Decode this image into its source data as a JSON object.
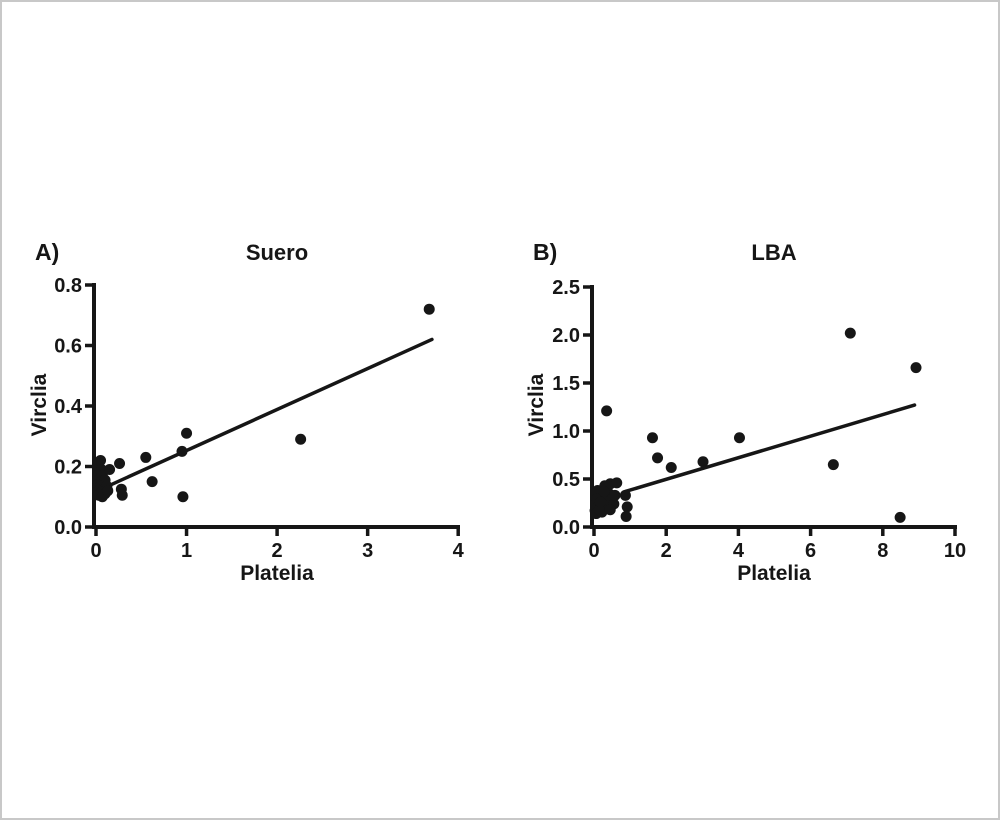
{
  "figure": {
    "background": "#ffffff",
    "border_color": "#c8c8c8",
    "ink_color": "#161616"
  },
  "chart_data": [
    {
      "type": "scatter",
      "panel_label": "A)",
      "title": "Suero",
      "xlabel": "Platelia",
      "ylabel": "Virclia",
      "xlim": [
        0,
        4
      ],
      "ylim": [
        0,
        0.8
      ],
      "grid": false,
      "legend": null,
      "marker_color": "#161616",
      "xticks": {
        "values": [
          0,
          1,
          2,
          3,
          4
        ],
        "labels": [
          "0",
          "1",
          "2",
          "3",
          "4"
        ]
      },
      "yticks": {
        "values": [
          0,
          0.2,
          0.4,
          0.6,
          0.8
        ],
        "labels": [
          "0.0",
          "0.2",
          "0.4",
          "0.6",
          "0.8"
        ]
      },
      "points": [
        [
          0.02,
          0.2
        ],
        [
          0.05,
          0.22
        ],
        [
          0.06,
          0.19
        ],
        [
          0.02,
          0.17
        ],
        [
          0.07,
          0.17
        ],
        [
          0.03,
          0.155
        ],
        [
          0.06,
          0.15
        ],
        [
          0.1,
          0.155
        ],
        [
          0.02,
          0.14
        ],
        [
          0.05,
          0.135
        ],
        [
          0.09,
          0.13
        ],
        [
          0.12,
          0.135
        ],
        [
          0.03,
          0.12
        ],
        [
          0.06,
          0.115
        ],
        [
          0.1,
          0.11
        ],
        [
          0.03,
          0.105
        ],
        [
          0.07,
          0.1
        ],
        [
          0.13,
          0.12
        ],
        [
          0.15,
          0.19
        ],
        [
          0.26,
          0.21
        ],
        [
          0.28,
          0.125
        ],
        [
          0.29,
          0.105
        ],
        [
          0.55,
          0.23
        ],
        [
          0.62,
          0.15
        ],
        [
          0.95,
          0.25
        ],
        [
          1.0,
          0.31
        ],
        [
          0.96,
          0.1
        ],
        [
          2.26,
          0.29
        ],
        [
          3.68,
          0.72
        ]
      ],
      "fit_line": {
        "x": [
          0.13,
          3.71
        ],
        "y": [
          0.135,
          0.62
        ]
      }
    },
    {
      "type": "scatter",
      "panel_label": "B)",
      "title": "LBA",
      "xlabel": "Platelia",
      "ylabel": "Virclia",
      "xlim": [
        0,
        10
      ],
      "ylim": [
        0,
        2.5
      ],
      "grid": false,
      "legend": null,
      "marker_color": "#161616",
      "xticks": {
        "values": [
          0,
          2,
          4,
          6,
          8,
          10
        ],
        "labels": [
          "0",
          "2",
          "4",
          "6",
          "8",
          "10"
        ]
      },
      "yticks": {
        "values": [
          0,
          0.5,
          1.0,
          1.5,
          2.0,
          2.5
        ],
        "labels": [
          "0.0",
          "0.5",
          "1.0",
          "1.5",
          "2.0",
          "2.5"
        ]
      },
      "points": [
        [
          0.1,
          0.38
        ],
        [
          0.3,
          0.43
        ],
        [
          0.45,
          0.45
        ],
        [
          0.63,
          0.46
        ],
        [
          0.22,
          0.33
        ],
        [
          0.41,
          0.35
        ],
        [
          0.08,
          0.29
        ],
        [
          0.31,
          0.28
        ],
        [
          0.5,
          0.29
        ],
        [
          0.13,
          0.22
        ],
        [
          0.36,
          0.22
        ],
        [
          0.55,
          0.24
        ],
        [
          0.03,
          0.17
        ],
        [
          0.22,
          0.155
        ],
        [
          0.06,
          0.14
        ],
        [
          0.15,
          0.18
        ],
        [
          0.28,
          0.37
        ],
        [
          0.18,
          0.26
        ],
        [
          0.45,
          0.18
        ],
        [
          0.58,
          0.33
        ],
        [
          0.87,
          0.33
        ],
        [
          0.92,
          0.21
        ],
        [
          0.89,
          0.11
        ],
        [
          0.35,
          1.21
        ],
        [
          1.62,
          0.93
        ],
        [
          1.76,
          0.72
        ],
        [
          2.14,
          0.62
        ],
        [
          3.02,
          0.68
        ],
        [
          4.03,
          0.93
        ],
        [
          6.63,
          0.65
        ],
        [
          7.1,
          2.02
        ],
        [
          8.92,
          1.66
        ],
        [
          8.48,
          0.1
        ]
      ],
      "fit_line": {
        "x": [
          0.87,
          8.88
        ],
        "y": [
          0.37,
          1.27
        ]
      }
    }
  ]
}
